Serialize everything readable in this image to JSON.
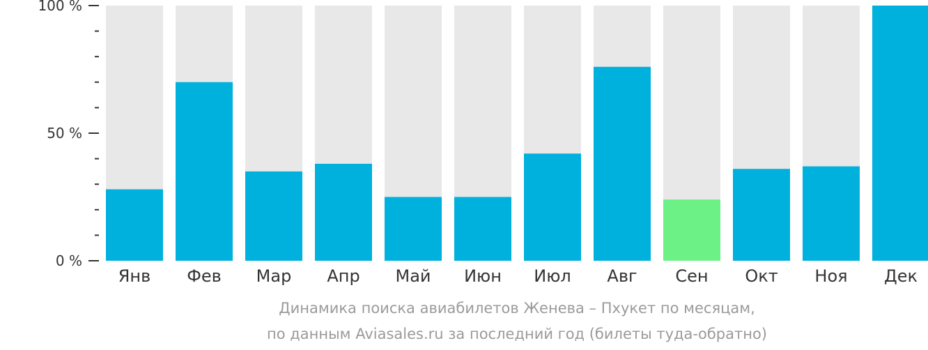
{
  "chart_data": {
    "type": "bar",
    "categories": [
      "Янв",
      "Фев",
      "Мар",
      "Апр",
      "Май",
      "Июн",
      "Июл",
      "Авг",
      "Сен",
      "Окт",
      "Ноя",
      "Дек"
    ],
    "values": [
      28,
      70,
      35,
      38,
      25,
      25,
      42,
      76,
      24,
      36,
      37,
      100
    ],
    "ylim": [
      0,
      100
    ],
    "yticks": [
      {
        "value": 0,
        "label": "0 %"
      },
      {
        "value": 50,
        "label": "50 %"
      },
      {
        "value": 100,
        "label": "100 %"
      }
    ],
    "highlight_index": 8,
    "colors": {
      "bar": "#00b0dd",
      "highlight": "#6cf187",
      "track": "#e8e8e8",
      "axis": "#333333"
    }
  },
  "caption": {
    "line1": "Динамика поиска авиабилетов Женева – Пхукет по месяцам,",
    "line2": "по данным Aviasales.ru за последний год (билеты туда-обратно)"
  }
}
